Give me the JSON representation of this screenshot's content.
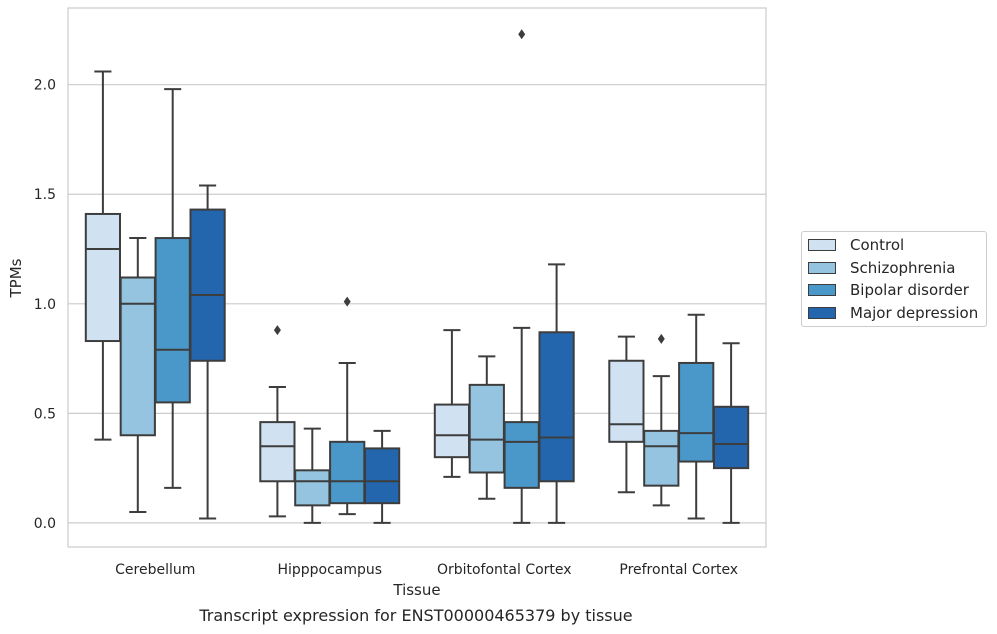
{
  "chart_data": {
    "type": "boxplot",
    "title": "",
    "caption": "Transcript expression for ENST00000465379 by tissue",
    "xlabel": "Tissue",
    "ylabel": "TPMs",
    "ylim": [
      -0.11,
      2.35
    ],
    "yticks": [
      0.0,
      0.5,
      1.0,
      1.5,
      2.0
    ],
    "ytick_labels": [
      "0.0",
      "0.5",
      "1.0",
      "1.5",
      "2.0"
    ],
    "grid": "horizontal",
    "legend_position": "right",
    "categories": [
      "Cerebellum",
      "Hipppocampus",
      "Orbitofontal Cortex",
      "Prefrontal Cortex"
    ],
    "series": [
      {
        "name": "Control",
        "color": "#d0e1f2",
        "boxes": [
          {
            "whislo": 0.38,
            "q1": 0.83,
            "med": 1.25,
            "q3": 1.41,
            "whishi": 2.06,
            "fliers": []
          },
          {
            "whislo": 0.03,
            "q1": 0.19,
            "med": 0.35,
            "q3": 0.46,
            "whishi": 0.62,
            "fliers": [
              0.88
            ]
          },
          {
            "whislo": 0.21,
            "q1": 0.3,
            "med": 0.4,
            "q3": 0.54,
            "whishi": 0.88,
            "fliers": []
          },
          {
            "whislo": 0.14,
            "q1": 0.37,
            "med": 0.45,
            "q3": 0.74,
            "whishi": 0.85,
            "fliers": []
          }
        ]
      },
      {
        "name": "Schizophrenia",
        "color": "#94c4df",
        "boxes": [
          {
            "whislo": 0.05,
            "q1": 0.4,
            "med": 1.0,
            "q3": 1.12,
            "whishi": 1.3,
            "fliers": []
          },
          {
            "whislo": 0.0,
            "q1": 0.08,
            "med": 0.19,
            "q3": 0.24,
            "whishi": 0.43,
            "fliers": []
          },
          {
            "whislo": 0.11,
            "q1": 0.23,
            "med": 0.38,
            "q3": 0.63,
            "whishi": 0.76,
            "fliers": []
          },
          {
            "whislo": 0.08,
            "q1": 0.17,
            "med": 0.35,
            "q3": 0.42,
            "whishi": 0.67,
            "fliers": [
              0.84
            ]
          }
        ]
      },
      {
        "name": "Bipolar disorder",
        "color": "#4a98c9",
        "boxes": [
          {
            "whislo": 0.16,
            "q1": 0.55,
            "med": 0.79,
            "q3": 1.3,
            "whishi": 1.98,
            "fliers": []
          },
          {
            "whislo": 0.04,
            "q1": 0.09,
            "med": 0.19,
            "q3": 0.37,
            "whishi": 0.73,
            "fliers": [
              1.01
            ]
          },
          {
            "whislo": 0.0,
            "q1": 0.16,
            "med": 0.37,
            "q3": 0.46,
            "whishi": 0.89,
            "fliers": [
              2.23
            ]
          },
          {
            "whislo": 0.02,
            "q1": 0.28,
            "med": 0.41,
            "q3": 0.73,
            "whishi": 0.95,
            "fliers": []
          }
        ]
      },
      {
        "name": "Major depression",
        "color": "#2366ad",
        "boxes": [
          {
            "whislo": 0.02,
            "q1": 0.74,
            "med": 1.04,
            "q3": 1.43,
            "whishi": 1.54,
            "fliers": []
          },
          {
            "whislo": 0.0,
            "q1": 0.09,
            "med": 0.19,
            "q3": 0.34,
            "whishi": 0.42,
            "fliers": []
          },
          {
            "whislo": 0.0,
            "q1": 0.19,
            "med": 0.39,
            "q3": 0.87,
            "whishi": 1.18,
            "fliers": []
          },
          {
            "whislo": 0.0,
            "q1": 0.25,
            "med": 0.36,
            "q3": 0.53,
            "whishi": 0.82,
            "fliers": []
          }
        ]
      }
    ]
  }
}
